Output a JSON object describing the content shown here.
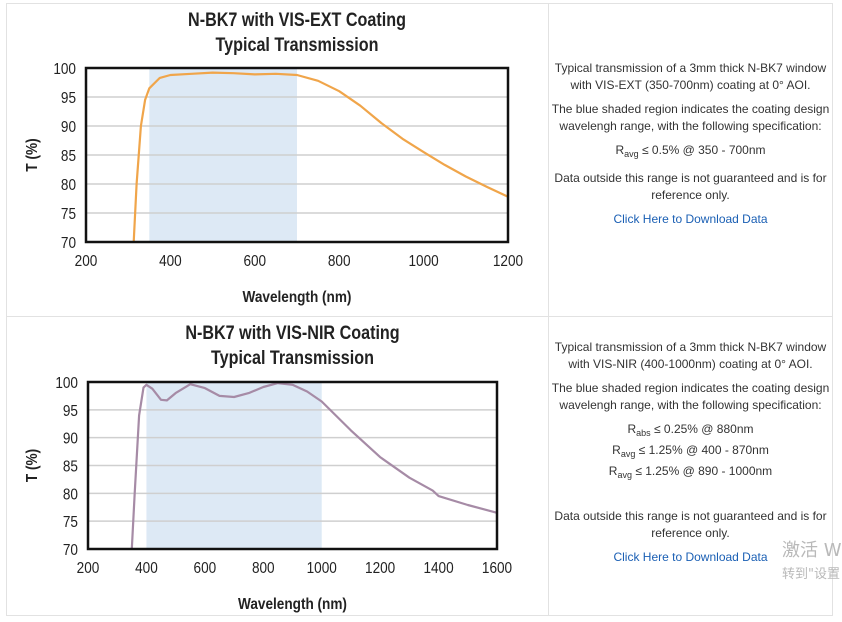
{
  "panels": [
    {
      "description": [
        "Typical transmission of a 3mm thick N-BK7 window with VIS-EXT (350-700nm) coating at 0° AOI.",
        "The blue shaded region indicates the coating design wavelengh range, with the following specification:",
        "Data outside this range is not guaranteed and is for reference only."
      ],
      "specs": [
        {
          "symbol": "R",
          "sub": "avg",
          "text": "≤ 0.5% @ 350 - 700nm"
        }
      ],
      "download_label": "Click Here to Download Data"
    },
    {
      "description": [
        "Typical transmission of a 3mm thick N-BK7 window with VIS-NIR (400-1000nm) coating at 0° AOI.",
        "The blue shaded region indicates the coating design wavelengh range, with the following specification:",
        "Data outside this range is not guaranteed and is for reference only."
      ],
      "specs": [
        {
          "symbol": "R",
          "sub": "abs",
          "text": "≤ 0.25% @ 880nm"
        },
        {
          "symbol": "R",
          "sub": "avg",
          "text": "≤ 1.25% @ 400 - 870nm"
        },
        {
          "symbol": "R",
          "sub": "avg",
          "text": "≤ 1.25% @ 890 - 1000nm"
        }
      ],
      "download_label": "Click Here to Download Data"
    }
  ],
  "watermark": {
    "line1": "激活 W",
    "line2": "转到\"设置"
  },
  "chart_data": [
    {
      "type": "line",
      "title": [
        "N-BK7 with VIS-EXT Coating",
        "Typical Transmission"
      ],
      "xlabel": "Wavelength (nm)",
      "ylabel": "T (%)",
      "xlim": [
        200,
        1200
      ],
      "ylim": [
        70,
        100
      ],
      "xticks": [
        200,
        400,
        600,
        800,
        1000,
        1200
      ],
      "yticks": [
        70,
        75,
        80,
        85,
        90,
        95,
        100
      ],
      "grid": "horizontal",
      "shaded_range": [
        350,
        700
      ],
      "shade_color": "#dde9f5",
      "line_color": "#f0a54a",
      "x": [
        313,
        320,
        330,
        340,
        350,
        375,
        400,
        450,
        500,
        550,
        600,
        650,
        700,
        750,
        800,
        850,
        900,
        950,
        1000,
        1050,
        1100,
        1150,
        1200
      ],
      "y": [
        70,
        80,
        90,
        94.5,
        96.5,
        98.3,
        98.8,
        99.0,
        99.2,
        99.1,
        98.9,
        99.0,
        98.8,
        97.8,
        96.0,
        93.5,
        90.5,
        87.8,
        85.5,
        83.3,
        81.3,
        79.5,
        77.8
      ]
    },
    {
      "type": "line",
      "title": [
        "N-BK7 with VIS-NIR Coating",
        "Typical Transmission"
      ],
      "xlabel": "Wavelength (nm)",
      "ylabel": "T (%)",
      "xlim": [
        200,
        1600
      ],
      "ylim": [
        70,
        100
      ],
      "xticks": [
        200,
        400,
        600,
        800,
        1000,
        1200,
        1400,
        1600
      ],
      "yticks": [
        70,
        75,
        80,
        85,
        90,
        95,
        100
      ],
      "grid": "horizontal",
      "shaded_range": [
        400,
        1000
      ],
      "shade_color": "#dde9f5",
      "line_color": "#a68ba6",
      "x": [
        350,
        360,
        375,
        390,
        400,
        420,
        450,
        470,
        500,
        550,
        600,
        650,
        700,
        750,
        800,
        850,
        900,
        950,
        1000,
        1100,
        1200,
        1300,
        1380,
        1400,
        1500,
        1600
      ],
      "y": [
        70,
        80,
        94,
        99,
        99.5,
        98.8,
        96.8,
        96.7,
        98,
        99.6,
        98.9,
        97.5,
        97.3,
        98,
        99.1,
        99.8,
        99.5,
        98.3,
        96.5,
        91.3,
        86.5,
        82.8,
        80.5,
        79.5,
        77.9,
        76.5
      ]
    }
  ]
}
